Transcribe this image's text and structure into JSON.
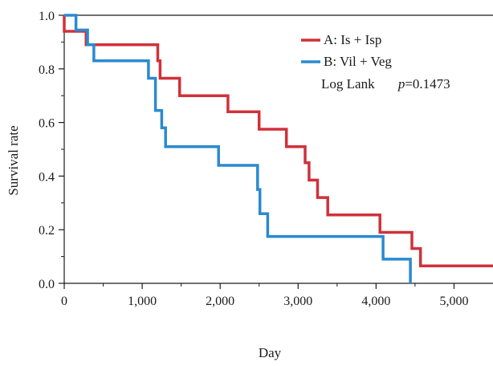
{
  "chart_data": {
    "type": "line",
    "title": "",
    "xlabel": "Day",
    "ylabel": "Survival rate",
    "xlim": [
      0,
      5500
    ],
    "ylim": [
      0,
      1.0
    ],
    "x_ticks": [
      0,
      1000,
      2000,
      3000,
      4000,
      5000
    ],
    "x_tick_labels": [
      "0",
      "1,000",
      "2,000",
      "3,000",
      "4,000",
      "5,000"
    ],
    "y_ticks": [
      0.0,
      0.2,
      0.4,
      0.6,
      0.8,
      1.0
    ],
    "y_tick_labels": [
      "0.0",
      "0.2",
      "0.4",
      "0.6",
      "0.8",
      "1.0"
    ],
    "legend_position": "top-right",
    "series": [
      {
        "name": "A: Is + Isp",
        "color": "#d0313a",
        "step": true,
        "x": [
          0,
          0,
          280,
          280,
          1200,
          1200,
          1230,
          1230,
          1480,
          1480,
          2100,
          2100,
          2500,
          2500,
          2850,
          2850,
          3090,
          3090,
          3140,
          3140,
          3250,
          3250,
          3380,
          3380,
          4050,
          4050,
          4460,
          4460,
          4570,
          4570,
          5500
        ],
        "y": [
          1.0,
          0.94,
          0.94,
          0.89,
          0.89,
          0.83,
          0.83,
          0.765,
          0.765,
          0.7,
          0.7,
          0.64,
          0.64,
          0.575,
          0.575,
          0.51,
          0.51,
          0.45,
          0.45,
          0.385,
          0.385,
          0.32,
          0.32,
          0.255,
          0.255,
          0.19,
          0.19,
          0.13,
          0.13,
          0.065,
          0.065
        ]
      },
      {
        "name": "B: Vil + Veg",
        "color": "#2a8ad0",
        "step": true,
        "x": [
          0,
          150,
          150,
          300,
          300,
          380,
          380,
          1080,
          1080,
          1170,
          1170,
          1250,
          1250,
          1300,
          1300,
          1980,
          1980,
          2480,
          2480,
          2510,
          2510,
          2610,
          2610,
          4090,
          4090,
          4440,
          4440
        ],
        "y": [
          1.0,
          1.0,
          0.945,
          0.945,
          0.89,
          0.89,
          0.83,
          0.83,
          0.765,
          0.765,
          0.645,
          0.645,
          0.58,
          0.58,
          0.51,
          0.51,
          0.44,
          0.44,
          0.35,
          0.35,
          0.26,
          0.26,
          0.175,
          0.175,
          0.09,
          0.09,
          0.0
        ]
      }
    ],
    "annotations": [
      {
        "prefix": "Log Lank",
        "italic": "p",
        "suffix": "=0.1473"
      }
    ]
  }
}
